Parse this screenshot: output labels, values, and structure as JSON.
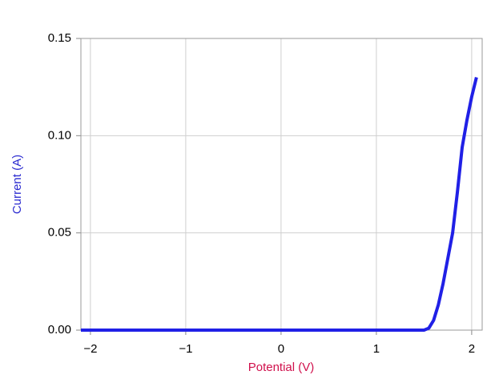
{
  "chart_data": {
    "type": "line",
    "x_label": "Potential (V)",
    "y_label": "Current (A)",
    "x_label_color": "#d0104c",
    "y_label_color": "#2b2bd0",
    "x": [
      -2.1,
      -1.5,
      -1.0,
      -0.5,
      0.0,
      0.5,
      1.0,
      1.5,
      1.55,
      1.6,
      1.65,
      1.7,
      1.75,
      1.8,
      1.85,
      1.9,
      1.95,
      2.0,
      2.05
    ],
    "series": [
      {
        "name": "Current",
        "color": "#2020e6",
        "values": [
          0,
          0,
          0,
          0,
          0,
          0,
          0,
          0,
          0.001,
          0.005,
          0.013,
          0.024,
          0.037,
          0.05,
          0.071,
          0.094,
          0.108,
          0.12,
          0.13
        ]
      }
    ],
    "xlim": [
      -2.1,
      2.11
    ],
    "ylim": [
      0,
      0.15
    ],
    "xticks": [
      {
        "value": -2,
        "label": "−2"
      },
      {
        "value": -1,
        "label": "−1"
      },
      0,
      1,
      2
    ],
    "yticks": [
      {
        "value": 0,
        "label": "0.00"
      },
      {
        "value": 0.05,
        "label": "0.05"
      },
      {
        "value": 0.1,
        "label": "0.10"
      },
      {
        "value": 0.15,
        "label": "0.15"
      }
    ],
    "grid": true
  }
}
